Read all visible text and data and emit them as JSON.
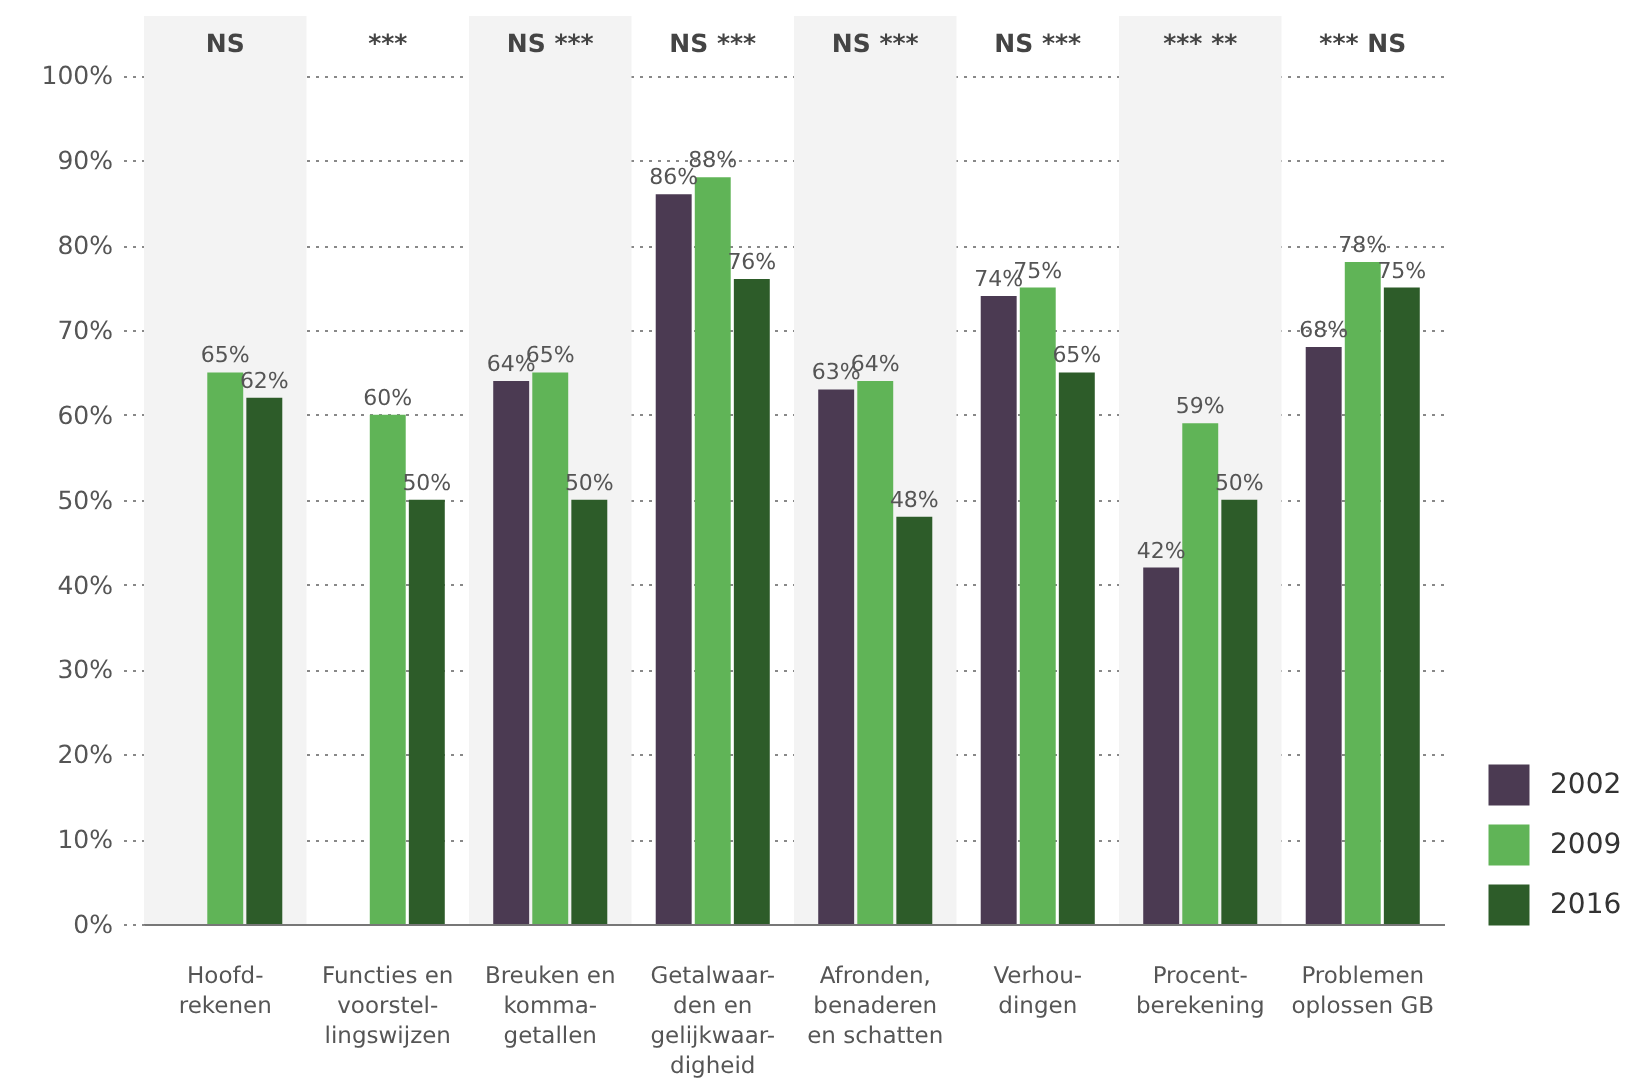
{
  "chart_data": {
    "type": "bar",
    "categories": [
      "Hoofd-\nrekenen",
      "Functies en\nvoorstel-\nlingswijzen",
      "Breuken en\nkomma-\ngetallen",
      "Getalwaar-\nden en\ngelijkwaar-\ndigheid",
      "Afronden,\nbenaderen\nen schatten",
      "Verhou-\ndingen",
      "Procent-\nberekening",
      "Problemen\noplossen GB"
    ],
    "series": [
      {
        "name": "2002",
        "color": "#4b3a52",
        "values": [
          null,
          null,
          64,
          86,
          63,
          74,
          42,
          68
        ],
        "value_labels": [
          null,
          null,
          "64%",
          "86%",
          "63%",
          "74%",
          "42%",
          "68%"
        ]
      },
      {
        "name": "2009",
        "color": "#60b457",
        "values": [
          65,
          60,
          65,
          88,
          64,
          75,
          59,
          78
        ],
        "value_labels": [
          "65%",
          "60%",
          "65%",
          "88%",
          "64%",
          "75%",
          "59%",
          "78%"
        ]
      },
      {
        "name": "2016",
        "color": "#2d5c29",
        "values": [
          62,
          50,
          50,
          76,
          48,
          65,
          50,
          75
        ],
        "value_labels": [
          "62%",
          "50%",
          "50%",
          "76%",
          "48%",
          "65%",
          "50%",
          "75%"
        ]
      }
    ],
    "ylim": [
      0,
      107
    ],
    "yticks": [
      {
        "value": 0,
        "label": "0%"
      },
      {
        "value": 10,
        "label": "10%"
      },
      {
        "value": 20,
        "label": "20%"
      },
      {
        "value": 30,
        "label": "30%"
      },
      {
        "value": 40,
        "label": "40%"
      },
      {
        "value": 50,
        "label": "50%"
      },
      {
        "value": 60,
        "label": "60%"
      },
      {
        "value": 70,
        "label": "70%"
      },
      {
        "value": 80,
        "label": "80%"
      },
      {
        "value": 90,
        "label": "90%"
      },
      {
        "value": 100,
        "label": "100%"
      }
    ],
    "grid": "y",
    "legend": "bottom right",
    "bands": [
      {
        "axis": "x",
        "from": "Hoofd-\nrekenen",
        "to": "Hoofd-\nrekenen",
        "color": "#f3f3f3"
      },
      {
        "axis": "x",
        "from": "Breuken en\nkomma-\ngetallen",
        "to": "Breuken en\nkomma-\ngetallen",
        "color": "#f3f3f3"
      },
      {
        "axis": "x",
        "from": "Afronden,\nbenaderen\nen schatten",
        "to": "Afronden,\nbenaderen\nen schatten",
        "color": "#f3f3f3"
      },
      {
        "axis": "x",
        "from": "Procent-\nberekening",
        "to": "Procent-\nberekening",
        "color": "#f3f3f3"
      }
    ],
    "annotations": [
      "NS",
      "***",
      "NS ***",
      "NS ***",
      "NS ***",
      "NS ***",
      "*** **",
      "*** NS"
    ]
  }
}
